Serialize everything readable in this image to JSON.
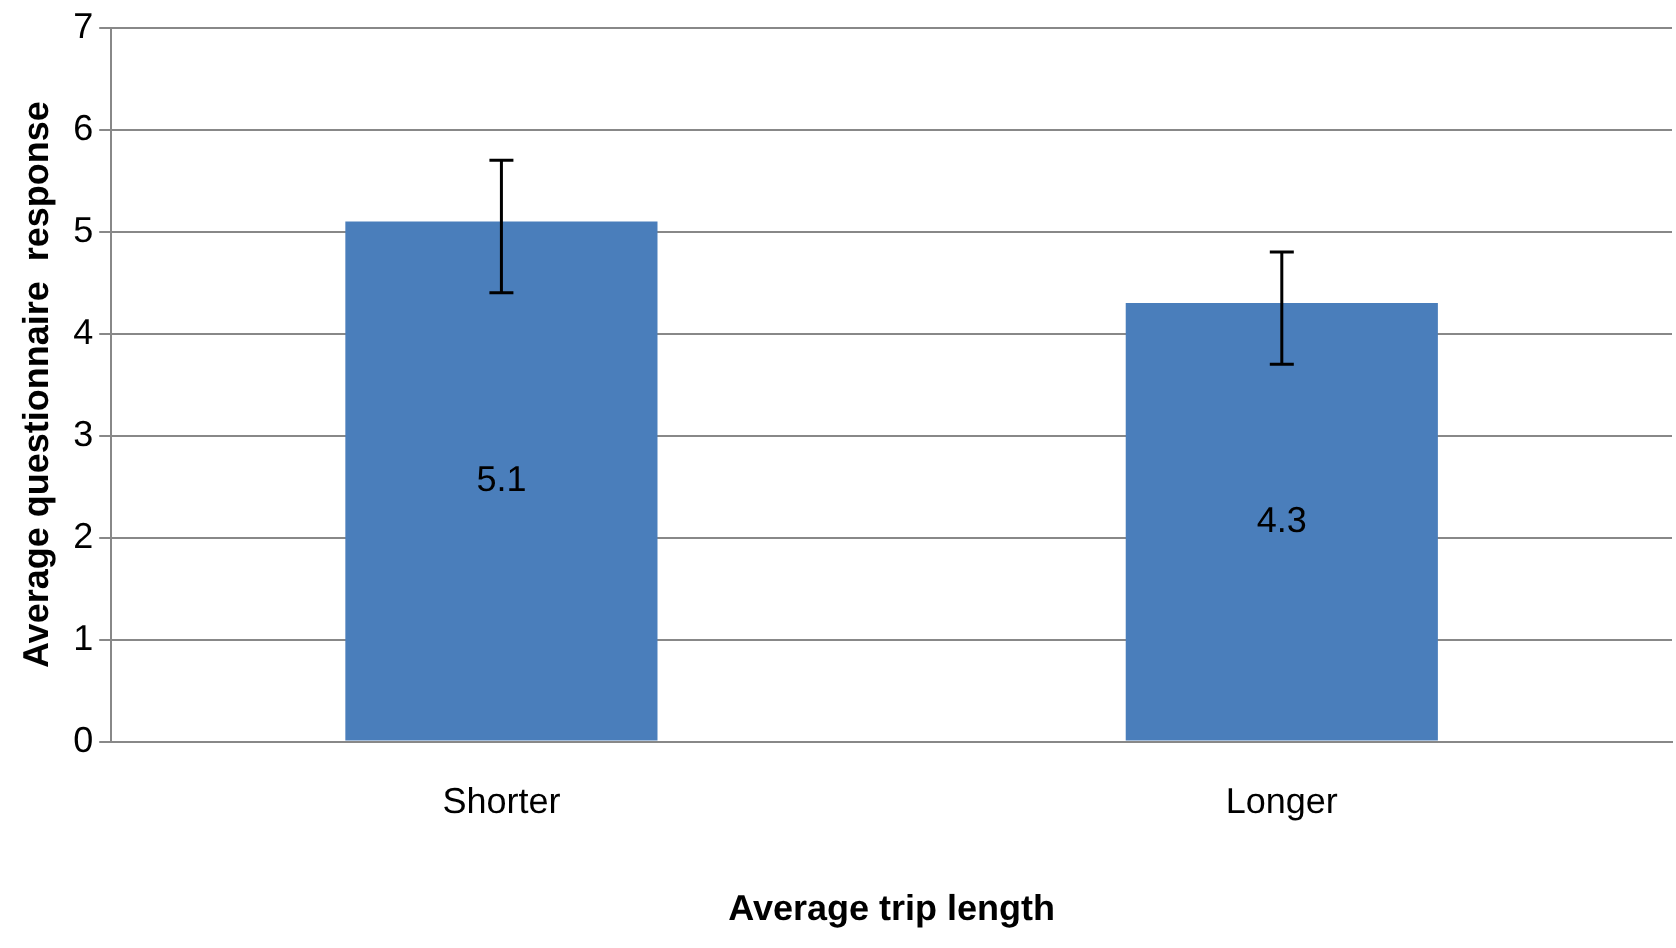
{
  "chart_data": {
    "type": "bar",
    "xlabel": "Average trip length",
    "ylabel": "Average questionnaire  response",
    "categories": [
      "Shorter",
      "Longer"
    ],
    "series": [
      {
        "color": "#4a7ebb",
        "values": [
          5.1,
          4.3
        ],
        "errors": [
          [
            4.4,
            5.7
          ],
          [
            3.7,
            4.8
          ]
        ]
      }
    ],
    "data_labels": true,
    "ylim": [
      0,
      7
    ],
    "yticks": [
      0,
      1,
      2,
      3,
      4,
      5,
      6,
      7
    ],
    "grid": "y",
    "legend": false
  }
}
